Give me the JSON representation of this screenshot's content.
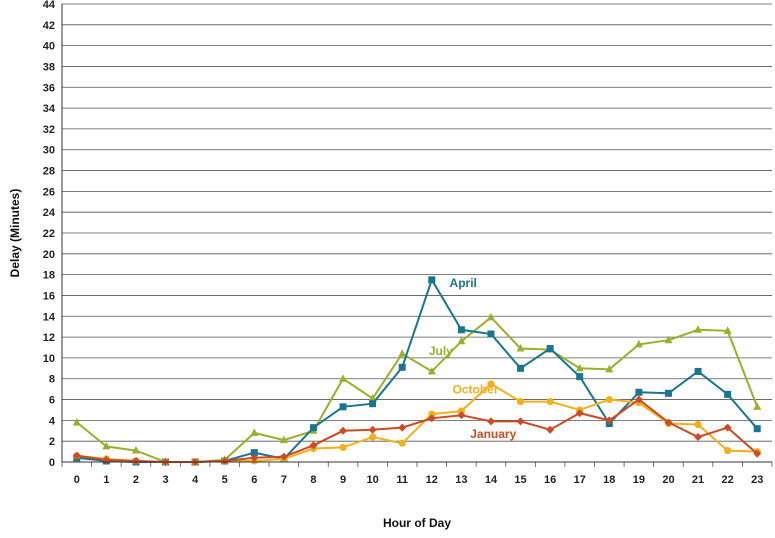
{
  "chart_data": {
    "type": "line",
    "title": "",
    "xlabel": "Hour of Day",
    "ylabel": "Delay (Minutes)",
    "x": [
      0,
      1,
      2,
      3,
      4,
      5,
      6,
      7,
      8,
      9,
      10,
      11,
      12,
      13,
      14,
      15,
      16,
      17,
      18,
      19,
      20,
      21,
      22,
      23
    ],
    "xticks": [
      "0",
      "1",
      "2",
      "3",
      "4",
      "5",
      "6",
      "7",
      "8",
      "9",
      "10",
      "11",
      "12",
      "13",
      "14",
      "15",
      "16",
      "17",
      "18",
      "19",
      "20",
      "21",
      "22",
      "23"
    ],
    "ylim": [
      0,
      44
    ],
    "yticks": [
      0,
      2,
      4,
      6,
      8,
      10,
      12,
      14,
      16,
      18,
      20,
      22,
      24,
      26,
      28,
      30,
      32,
      34,
      36,
      38,
      40,
      42,
      44
    ],
    "grid": true,
    "legend": "inline labels",
    "series": [
      {
        "name": "July",
        "color": "#9aaf2b",
        "marker": "triangle",
        "values": [
          3.8,
          1.5,
          1.1,
          0.0,
          0.0,
          0.2,
          2.8,
          2.1,
          3.0,
          8.0,
          6.1,
          10.4,
          8.7,
          11.6,
          13.9,
          10.9,
          10.8,
          9.0,
          8.9,
          11.3,
          11.7,
          12.7,
          12.6,
          5.3
        ]
      },
      {
        "name": "April",
        "color": "#1a7591",
        "marker": "square",
        "values": [
          0.4,
          0.1,
          0.0,
          0.0,
          0.0,
          0.1,
          0.9,
          0.3,
          3.3,
          5.3,
          5.6,
          9.1,
          17.5,
          12.7,
          12.3,
          9.0,
          10.9,
          8.2,
          3.7,
          6.7,
          6.6,
          8.7,
          6.5,
          3.2
        ]
      },
      {
        "name": "October",
        "color": "#f2b11c",
        "marker": "circle",
        "values": [
          0.6,
          0.3,
          0.1,
          0.0,
          0.0,
          0.1,
          0.1,
          0.3,
          1.3,
          1.4,
          2.4,
          1.8,
          4.6,
          4.9,
          7.5,
          5.8,
          5.8,
          5.0,
          6.0,
          5.7,
          3.7,
          3.6,
          1.1,
          1.0
        ]
      },
      {
        "name": "January",
        "color": "#cc4a24",
        "marker": "diamond",
        "values": [
          0.6,
          0.2,
          0.1,
          0.0,
          0.0,
          0.1,
          0.4,
          0.5,
          1.6,
          3.0,
          3.1,
          3.3,
          4.2,
          4.5,
          3.9,
          3.9,
          3.1,
          4.7,
          4.0,
          6.0,
          3.8,
          2.4,
          3.3,
          0.8
        ]
      }
    ],
    "series_labels": [
      {
        "name": "April",
        "x": 12.6,
        "y": 16.8
      },
      {
        "name": "July",
        "x": 11.9,
        "y": 10.3
      },
      {
        "name": "October",
        "x": 12.7,
        "y": 6.6
      },
      {
        "name": "January",
        "x": 13.3,
        "y": 2.3
      }
    ]
  }
}
